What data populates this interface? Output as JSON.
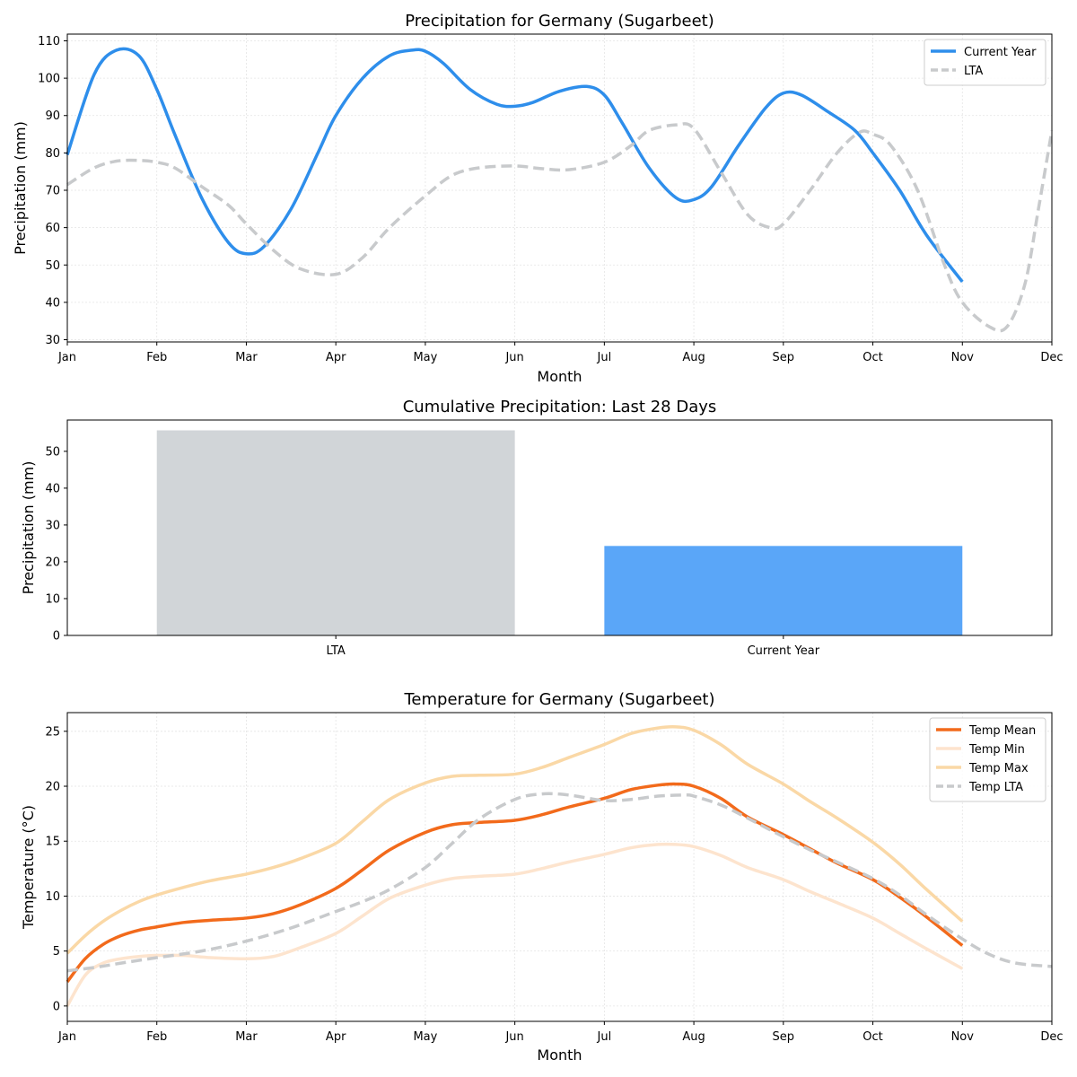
{
  "chart_data": [
    {
      "type": "line",
      "title": "Precipitation for Germany (Sugarbeet)",
      "xlabel": "Month",
      "ylabel": "Precipitation (mm)",
      "x_ticks": [
        "Jan",
        "Feb",
        "Mar",
        "Apr",
        "May",
        "Jun",
        "Jul",
        "Aug",
        "Sep",
        "Oct",
        "Nov",
        "Dec"
      ],
      "x_range": [
        0,
        11
      ],
      "ylim": [
        29.4,
        111.8
      ],
      "y_ticks": [
        30,
        40,
        50,
        60,
        70,
        80,
        90,
        100,
        110
      ],
      "grid": true,
      "legend_position": "top-right",
      "series": [
        {
          "name": "Current Year",
          "color": "#2E8EEB",
          "style": "solid",
          "x": [
            0,
            0.3,
            0.55,
            0.8,
            1,
            1.2,
            1.5,
            1.8,
            2,
            2.2,
            2.5,
            2.8,
            3,
            3.3,
            3.6,
            3.85,
            4,
            4.2,
            4.5,
            4.8,
            5,
            5.2,
            5.5,
            5.8,
            6,
            6.2,
            6.5,
            6.8,
            7,
            7.2,
            7.5,
            7.8,
            8,
            8.2,
            8.5,
            8.8,
            9,
            9.3,
            9.6,
            10
          ],
          "y": [
            79.5,
            101,
            107.5,
            106,
            97,
            85,
            68,
            56,
            53,
            55,
            65,
            80,
            90,
            100,
            106,
            107.5,
            107.2,
            104,
            97,
            93,
            92.5,
            93.5,
            96.5,
            97.8,
            95.5,
            88,
            76,
            68,
            67.5,
            71,
            82,
            92,
            96,
            95.5,
            91,
            86,
            80,
            70,
            58,
            45.5
          ]
        },
        {
          "name": "LTA",
          "color": "#C8CACC",
          "style": "dashed",
          "x": [
            0,
            0.3,
            0.55,
            0.8,
            1,
            1.2,
            1.5,
            1.8,
            2,
            2.3,
            2.6,
            3,
            3.3,
            3.6,
            4,
            4.3,
            4.6,
            5,
            5.3,
            5.6,
            6,
            6.3,
            6.5,
            6.8,
            7,
            7.3,
            7.6,
            7.85,
            8,
            8.3,
            8.6,
            8.85,
            9,
            9.2,
            9.5,
            9.8,
            10,
            10.3,
            10.5,
            10.7,
            10.85,
            11
          ],
          "y": [
            71.5,
            76,
            77.8,
            78,
            77.5,
            76,
            71,
            66,
            61,
            54,
            49,
            47.5,
            52,
            60,
            68.5,
            74,
            76,
            76.5,
            75.8,
            75.5,
            77.5,
            82,
            86,
            87.5,
            86.5,
            75,
            63.5,
            60,
            61,
            70,
            80,
            85.5,
            85,
            82,
            70,
            50,
            40,
            33.5,
            33.5,
            45,
            65,
            86
          ]
        }
      ]
    },
    {
      "type": "bar",
      "title": "Cumulative Precipitation: Last 28 Days",
      "xlabel": "",
      "ylabel": "Precipitation (mm)",
      "categories": [
        "LTA",
        "Current Year"
      ],
      "values": [
        55.7,
        24.3
      ],
      "colors": [
        "#D1D5D8",
        "#5AA6F8"
      ],
      "ylim": [
        0,
        58.5
      ],
      "y_ticks": [
        0,
        10,
        20,
        30,
        40,
        50
      ],
      "grid": false
    },
    {
      "type": "line",
      "title": "Temperature for Germany (Sugarbeet)",
      "xlabel": "Month",
      "ylabel": "Temperature (°C)",
      "x_ticks": [
        "Jan",
        "Feb",
        "Mar",
        "Apr",
        "May",
        "Jun",
        "Jul",
        "Aug",
        "Sep",
        "Oct",
        "Nov",
        "Dec"
      ],
      "x_range": [
        0,
        11
      ],
      "ylim": [
        -1.4,
        26.7
      ],
      "y_ticks": [
        0,
        5,
        10,
        15,
        20,
        25
      ],
      "grid": true,
      "legend_position": "top-right",
      "series": [
        {
          "name": "Temp Mean",
          "color": "#F26A1B",
          "style": "solid",
          "x": [
            0,
            0.2,
            0.4,
            0.6,
            0.8,
            1,
            1.3,
            1.6,
            2,
            2.3,
            2.6,
            3,
            3.3,
            3.6,
            4,
            4.3,
            4.6,
            5,
            5.3,
            5.6,
            6,
            6.3,
            6.6,
            6.8,
            7,
            7.3,
            7.6,
            8,
            8.3,
            8.6,
            9,
            9.3,
            9.6,
            10
          ],
          "y": [
            2.2,
            4.3,
            5.6,
            6.4,
            6.9,
            7.2,
            7.6,
            7.8,
            8.0,
            8.4,
            9.2,
            10.7,
            12.4,
            14.2,
            15.8,
            16.5,
            16.7,
            16.9,
            17.4,
            18.1,
            18.9,
            19.7,
            20.1,
            20.2,
            20.0,
            18.9,
            17.2,
            15.6,
            14.3,
            13.0,
            11.5,
            9.9,
            8.1,
            5.5
          ]
        },
        {
          "name": "Temp Min",
          "color": "#FDE4CE",
          "style": "solid",
          "x": [
            0,
            0.2,
            0.4,
            0.6,
            0.8,
            1,
            1.3,
            1.6,
            2,
            2.3,
            2.6,
            3,
            3.3,
            3.6,
            4,
            4.3,
            4.6,
            5,
            5.3,
            5.6,
            6,
            6.3,
            6.6,
            6.8,
            7,
            7.3,
            7.6,
            8,
            8.3,
            8.6,
            9,
            9.3,
            9.6,
            10
          ],
          "y": [
            0.0,
            2.8,
            3.9,
            4.3,
            4.5,
            4.6,
            4.6,
            4.4,
            4.3,
            4.5,
            5.3,
            6.6,
            8.2,
            9.8,
            11.0,
            11.6,
            11.8,
            12.0,
            12.5,
            13.1,
            13.8,
            14.4,
            14.7,
            14.7,
            14.5,
            13.7,
            12.6,
            11.5,
            10.4,
            9.4,
            8.0,
            6.6,
            5.2,
            3.4
          ]
        },
        {
          "name": "Temp Max",
          "color": "#FAD8A6",
          "style": "solid",
          "x": [
            0,
            0.2,
            0.4,
            0.6,
            0.8,
            1,
            1.3,
            1.6,
            2,
            2.3,
            2.6,
            3,
            3.3,
            3.6,
            4,
            4.3,
            4.6,
            5,
            5.3,
            5.6,
            6,
            6.3,
            6.6,
            6.8,
            7,
            7.3,
            7.6,
            8,
            8.3,
            8.6,
            9,
            9.3,
            9.6,
            10
          ],
          "y": [
            4.8,
            6.4,
            7.7,
            8.7,
            9.5,
            10.1,
            10.8,
            11.4,
            12.0,
            12.6,
            13.4,
            14.8,
            16.8,
            18.8,
            20.3,
            20.9,
            21.0,
            21.1,
            21.7,
            22.6,
            23.8,
            24.8,
            25.3,
            25.4,
            25.1,
            23.8,
            22.0,
            20.2,
            18.6,
            17.1,
            14.9,
            12.9,
            10.6,
            7.7
          ]
        },
        {
          "name": "Temp LTA",
          "color": "#C8CACC",
          "style": "dashed",
          "x": [
            0,
            0.3,
            0.6,
            1,
            1.5,
            2,
            2.5,
            3,
            3.3,
            3.6,
            4,
            4.3,
            4.6,
            5,
            5.3,
            5.6,
            6,
            6.3,
            6.6,
            6.9,
            7,
            7.3,
            7.6,
            8,
            8.3,
            8.6,
            9,
            9.3,
            9.6,
            10,
            10.3,
            10.6,
            11
          ],
          "y": [
            3.2,
            3.5,
            3.9,
            4.4,
            5.0,
            5.9,
            7.1,
            8.6,
            9.5,
            10.6,
            12.6,
            14.8,
            17.0,
            18.8,
            19.3,
            19.2,
            18.7,
            18.8,
            19.1,
            19.2,
            19.1,
            18.3,
            17.1,
            15.4,
            14.2,
            13.1,
            11.6,
            10.1,
            8.3,
            6.1,
            4.7,
            3.9,
            3.6
          ]
        }
      ]
    }
  ]
}
